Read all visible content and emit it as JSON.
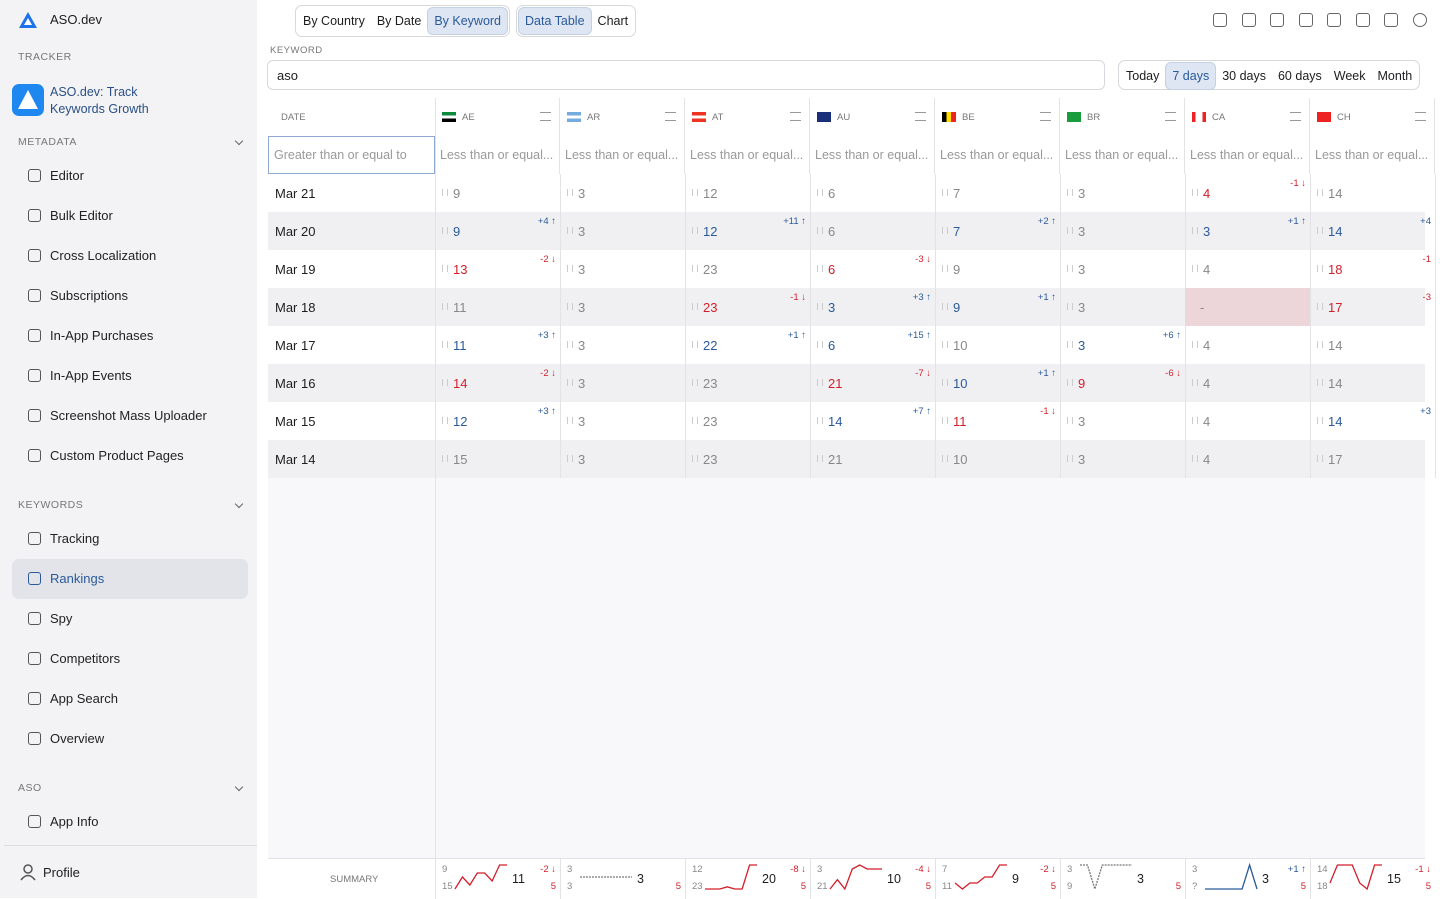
{
  "sidebar": {
    "app_name": "ASO.dev",
    "tracker_label": "TRACKER",
    "app_title": "ASO.dev: Track Keywords Growth",
    "sections": [
      {
        "title": "METADATA",
        "items": [
          "Editor",
          "Bulk Editor",
          "Cross Localization",
          "Subscriptions",
          "In-App Purchases",
          "In-App Events",
          "Screenshot Mass Uploader",
          "Custom Product Pages"
        ]
      },
      {
        "title": "KEYWORDS",
        "items": [
          "Tracking",
          "Rankings",
          "Spy",
          "Competitors",
          "App Search",
          "Overview"
        ],
        "active": 1
      },
      {
        "title": "ASO",
        "items": [
          "App Info"
        ]
      }
    ],
    "profile": "Profile"
  },
  "toolbar": {
    "modes": [
      "By Country",
      "By Date",
      "By Keyword"
    ],
    "active_mode": 2,
    "views": [
      "Data Table",
      "Chart"
    ],
    "active_view": 0
  },
  "keyword": {
    "label": "KEYWORD",
    "value": "aso"
  },
  "ranges": {
    "options": [
      "Today",
      "7 days",
      "30 days",
      "60 days",
      "Week",
      "Month"
    ],
    "active": 1
  },
  "table": {
    "date_header": "DATE",
    "date_filter": "Greater than or equal to",
    "columns": [
      {
        "code": "AE",
        "filter": "Less than or equal..."
      },
      {
        "code": "AR",
        "filter": "Less than or equal..."
      },
      {
        "code": "AT",
        "filter": "Less than or equal..."
      },
      {
        "code": "AU",
        "filter": "Less than or equal..."
      },
      {
        "code": "BE",
        "filter": "Less than or equal..."
      },
      {
        "code": "BR",
        "filter": "Less than or equal..."
      },
      {
        "code": "CA",
        "filter": "Less than or equal..."
      },
      {
        "code": "CH",
        "filter": "Less than or equal..."
      }
    ],
    "rows": [
      {
        "date": "Mar 21",
        "cells": [
          {
            "rank": 9
          },
          {
            "rank": 3
          },
          {
            "rank": 12
          },
          {
            "rank": 6
          },
          {
            "rank": 7
          },
          {
            "rank": 3
          },
          {
            "rank": 4,
            "change": "-1 ↓"
          },
          {
            "rank": 14
          }
        ]
      },
      {
        "date": "Mar 20",
        "cells": [
          {
            "rank": 9,
            "change": "+4 ↑"
          },
          {
            "rank": 3
          },
          {
            "rank": 12,
            "change": "+11 ↑"
          },
          {
            "rank": 6
          },
          {
            "rank": 7,
            "change": "+2 ↑"
          },
          {
            "rank": 3
          },
          {
            "rank": 3,
            "change": "+1 ↑"
          },
          {
            "rank": 14,
            "change": "+4"
          }
        ]
      },
      {
        "date": "Mar 19",
        "cells": [
          {
            "rank": 13,
            "change": "-2 ↓"
          },
          {
            "rank": 3
          },
          {
            "rank": 23
          },
          {
            "rank": 6,
            "change": "-3 ↓"
          },
          {
            "rank": 9
          },
          {
            "rank": 3
          },
          {
            "rank": 4
          },
          {
            "rank": 18,
            "change": "-1"
          }
        ]
      },
      {
        "date": "Mar 18",
        "cells": [
          {
            "rank": 11
          },
          {
            "rank": 3
          },
          {
            "rank": 23,
            "change": "-1 ↓"
          },
          {
            "rank": 3,
            "change": "+3 ↑"
          },
          {
            "rank": 9,
            "change": "+1 ↑"
          },
          {
            "rank": 3
          },
          {
            "rank": "-"
          },
          {
            "rank": 17,
            "change": "-3"
          }
        ]
      },
      {
        "date": "Mar 17",
        "cells": [
          {
            "rank": 11,
            "change": "+3 ↑"
          },
          {
            "rank": 3
          },
          {
            "rank": 22,
            "change": "+1 ↑"
          },
          {
            "rank": 6,
            "change": "+15 ↑"
          },
          {
            "rank": 10
          },
          {
            "rank": 3,
            "change": "+6 ↑"
          },
          {
            "rank": 4
          },
          {
            "rank": 14
          }
        ]
      },
      {
        "date": "Mar 16",
        "cells": [
          {
            "rank": 14,
            "change": "-2 ↓"
          },
          {
            "rank": 3
          },
          {
            "rank": 23
          },
          {
            "rank": 21,
            "change": "-7 ↓"
          },
          {
            "rank": 10,
            "change": "+1 ↑"
          },
          {
            "rank": 9,
            "change": "-6 ↓"
          },
          {
            "rank": 4
          },
          {
            "rank": 14
          }
        ]
      },
      {
        "date": "Mar 15",
        "cells": [
          {
            "rank": 12,
            "change": "+3 ↑"
          },
          {
            "rank": 3
          },
          {
            "rank": 23
          },
          {
            "rank": 14,
            "change": "+7 ↑"
          },
          {
            "rank": 11,
            "change": "-1 ↓"
          },
          {
            "rank": 3
          },
          {
            "rank": 4
          },
          {
            "rank": 14,
            "change": "+3"
          }
        ]
      },
      {
        "date": "Mar 14",
        "cells": [
          {
            "rank": 15
          },
          {
            "rank": 3
          },
          {
            "rank": 23
          },
          {
            "rank": 21
          },
          {
            "rank": 10
          },
          {
            "rank": 3
          },
          {
            "rank": 4
          },
          {
            "rank": 17
          }
        ]
      }
    ],
    "summary": {
      "label": "SUMMARY",
      "columns": [
        {
          "best": 9,
          "worst": 15,
          "current": 11,
          "change": "-2 ↓",
          "count": 5
        },
        {
          "best": 3,
          "worst": 3,
          "current": 3,
          "count": 5
        },
        {
          "best": 12,
          "worst": 23,
          "current": 20,
          "change": "-8 ↓",
          "count": 5
        },
        {
          "best": 3,
          "worst": 21,
          "current": 10,
          "change": "-4 ↓",
          "count": 5
        },
        {
          "best": 7,
          "worst": 11,
          "current": 9,
          "change": "-2 ↓",
          "count": 5
        },
        {
          "best": 3,
          "worst": 9,
          "current": 3,
          "count": 5
        },
        {
          "best": 3,
          "worst": "?",
          "current": 3,
          "change": "+1 ↑",
          "count": 5
        },
        {
          "best": 14,
          "worst": 18,
          "current": 15,
          "change": "-1 ↓",
          "count": 5
        }
      ]
    }
  }
}
